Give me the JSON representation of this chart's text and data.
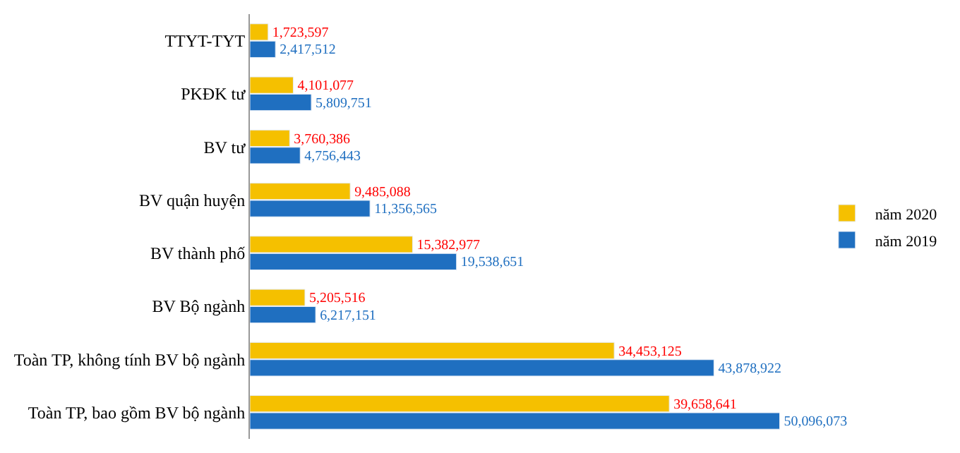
{
  "chart_data": {
    "type": "bar",
    "orientation": "horizontal",
    "categories": [
      "TTYT-TYT",
      "PKĐK tư",
      "BV tư",
      "BV quận huyện",
      "BV thành phố",
      "BV Bộ ngành",
      "Toàn TP, không tính BV bộ ngành",
      "Toàn TP, bao gồm BV bộ ngành"
    ],
    "series": [
      {
        "name": "năm 2020",
        "color": "#f5c000",
        "values": [
          1723597,
          4101077,
          3760386,
          9485088,
          15382977,
          5205516,
          34453125,
          39658641
        ],
        "value_labels": [
          "1,723,597",
          "4,101,077",
          "3,760,386",
          "9,485,088",
          "15,382,977",
          "5,205,516",
          "34,453,125",
          "39,658,641"
        ]
      },
      {
        "name": "năm 2019",
        "color": "#1f6fc0",
        "values": [
          2417512,
          5809751,
          4756443,
          11356565,
          19538651,
          6217151,
          43878922,
          50096073
        ],
        "value_labels": [
          "2,417,512",
          "5,809,751",
          "4,756,443",
          "11,356,565",
          "19,538,651",
          "6,217,151",
          "43,878,922",
          "50,096,073"
        ]
      }
    ],
    "legend": "right"
  }
}
